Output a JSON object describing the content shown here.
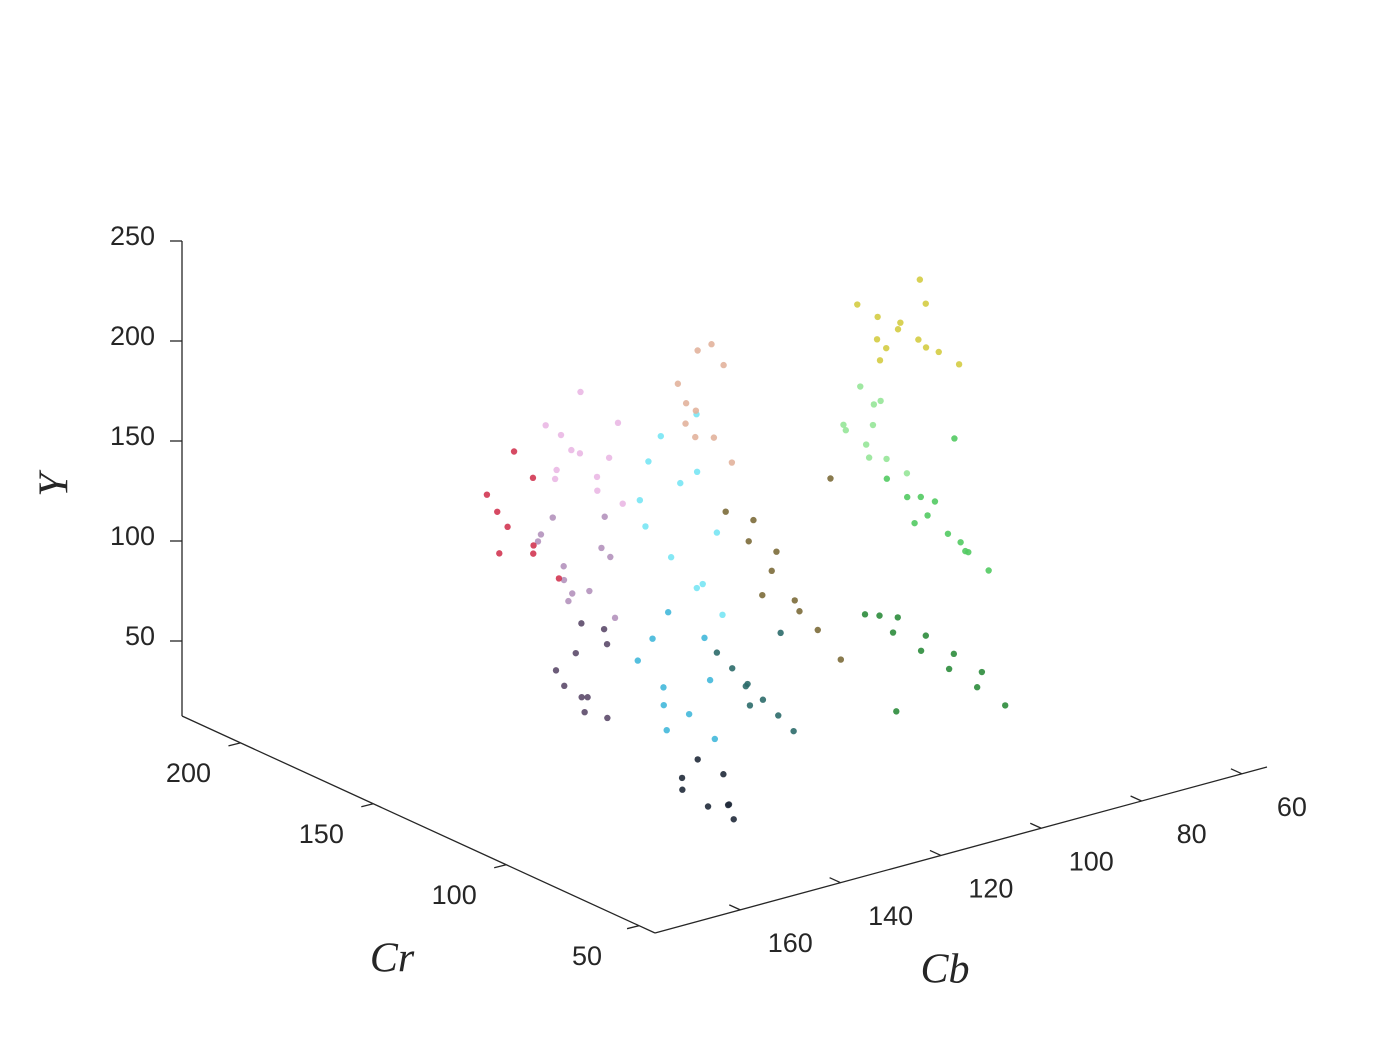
{
  "chart_data": {
    "type": "scatter3d",
    "x_label": "Cb",
    "y_label": "Cr",
    "z_label": "Y",
    "xlim": [
      55,
      177
    ],
    "ylim": [
      44,
      222
    ],
    "zlim": [
      12.5,
      250
    ],
    "xticks": [
      60,
      80,
      100,
      120,
      140,
      160
    ],
    "yticks": [
      50,
      100,
      150,
      200
    ],
    "zticks": [
      50,
      100,
      150,
      200,
      250
    ],
    "series": [
      {
        "color": "#eab8e4",
        "x": [
          140,
          143,
          146,
          149,
          141,
          144,
          147,
          150,
          142,
          145,
          148,
          139
        ],
        "y": [
          126,
          130,
          134,
          138,
          140,
          128,
          136,
          132,
          124,
          142,
          127,
          133
        ],
        "z": [
          152,
          165,
          178,
          190,
          200,
          160,
          185,
          172,
          195,
          158,
          182,
          170
        ]
      },
      {
        "color": "#b492bc",
        "x": [
          141,
          144,
          147,
          150,
          142,
          145,
          148,
          143,
          146,
          149,
          140,
          151
        ],
        "y": [
          127,
          131,
          135,
          139,
          129,
          137,
          133,
          125,
          141,
          128,
          134,
          136
        ],
        "z": [
          95,
          108,
          120,
          132,
          145,
          100,
          115,
          128,
          140,
          112,
          125,
          138
        ]
      },
      {
        "color": "#5c4a6a",
        "x": [
          142,
          145,
          148,
          141,
          144,
          147,
          143,
          146,
          140,
          149
        ],
        "y": [
          128,
          132,
          136,
          130,
          134,
          126,
          138,
          129,
          133,
          131
        ],
        "z": [
          45,
          55,
          68,
          80,
          90,
          60,
          72,
          50,
          85,
          64
        ]
      },
      {
        "color": "#78e6f4",
        "x": [
          136,
          139,
          142,
          145,
          137,
          140,
          143,
          138,
          141,
          144,
          135,
          146
        ],
        "y": [
          96,
          100,
          104,
          108,
          110,
          98,
          106,
          102,
          94,
          112,
          100,
          105
        ],
        "z": [
          112,
          125,
          140,
          155,
          170,
          185,
          200,
          210,
          132,
          165,
          150,
          190
        ]
      },
      {
        "color": "#42b8da",
        "x": [
          137,
          140,
          143,
          146,
          138,
          141,
          144,
          139,
          142,
          145
        ],
        "y": [
          97,
          101,
          105,
          109,
          99,
          107,
          103,
          95,
          111,
          100
        ],
        "z": [
          50,
          62,
          75,
          88,
          100,
          110,
          68,
          82,
          95,
          58
        ]
      },
      {
        "color": "#202a3a",
        "x": [
          138,
          141,
          144,
          139,
          142,
          140,
          143,
          137
        ],
        "y": [
          88,
          92,
          96,
          90,
          94,
          86,
          98,
          92
        ],
        "z": [
          16,
          22,
          30,
          38,
          45,
          26,
          34,
          20
        ]
      },
      {
        "color": "#d23652",
        "x": [
          140,
          143,
          146,
          148,
          141,
          144,
          147,
          142,
          145
        ],
        "y": [
          150,
          154,
          158,
          162,
          165,
          152,
          160,
          156,
          163
        ],
        "z": [
          100,
          112,
          125,
          140,
          155,
          118,
          132,
          148,
          108
        ]
      },
      {
        "color": "#e2b39c",
        "x": [
          114,
          116,
          118,
          120,
          115,
          117,
          119,
          113,
          121,
          116
        ],
        "y": [
          134,
          137,
          140,
          143,
          145,
          136,
          142,
          139,
          138,
          144
        ],
        "z": [
          150,
          162,
          175,
          188,
          200,
          210,
          168,
          195,
          182,
          158
        ]
      },
      {
        "color": "#d4cc42",
        "x": [
          74,
          77,
          80,
          83,
          86,
          89,
          76,
          79,
          82,
          85,
          88,
          78,
          84
        ],
        "y": [
          124,
          126,
          128,
          130,
          132,
          134,
          135,
          127,
          131,
          133,
          125,
          129,
          136
        ],
        "z": [
          178,
          185,
          192,
          198,
          205,
          212,
          215,
          188,
          200,
          182,
          195,
          208,
          190
        ]
      },
      {
        "color": "#96e698",
        "x": [
          95,
          98,
          101,
          104,
          96,
          99,
          102,
          105,
          97,
          100
        ],
        "y": [
          104,
          106,
          108,
          110,
          112,
          114,
          105,
          109,
          113,
          107
        ],
        "z": [
          150,
          158,
          166,
          174,
          182,
          190,
          162,
          178,
          170,
          186
        ]
      },
      {
        "color": "#52ca62",
        "x": [
          84,
          87,
          90,
          93,
          96,
          99,
          85,
          88,
          91,
          94,
          97,
          86
        ],
        "y": [
          94,
          96,
          98,
          100,
          102,
          104,
          105,
          97,
          101,
          103,
          95,
          99
        ],
        "z": [
          100,
          110,
          120,
          130,
          140,
          150,
          160,
          115,
          135,
          125,
          145,
          108
        ]
      },
      {
        "color": "#2c8c3c",
        "x": [
          86,
          90,
          94,
          98,
          102,
          106,
          110,
          88,
          92,
          96,
          100,
          104
        ],
        "y": [
          84,
          87,
          90,
          93,
          96,
          99,
          86,
          89,
          92,
          95,
          98,
          91
        ],
        "z": [
          40,
          50,
          60,
          70,
          80,
          90,
          100,
          55,
          65,
          75,
          85,
          45
        ]
      },
      {
        "color": "#7c6c3a",
        "x": [
          105,
          108,
          111,
          114,
          117,
          120,
          106,
          109,
          112,
          115,
          118
        ],
        "y": [
          110,
          113,
          116,
          119,
          122,
          125,
          112,
          118,
          121,
          124,
          115
        ],
        "z": [
          60,
          75,
          90,
          105,
          120,
          135,
          150,
          82,
          112,
          128,
          98
        ]
      },
      {
        "color": "#2c6c6a",
        "x": [
          125,
          127,
          129,
          131,
          133,
          135,
          126,
          130,
          134
        ],
        "y": [
          90,
          92,
          94,
          96,
          98,
          100,
          93,
          97,
          91
        ],
        "z": [
          50,
          58,
          66,
          74,
          82,
          90,
          98,
          62,
          78
        ]
      }
    ]
  }
}
